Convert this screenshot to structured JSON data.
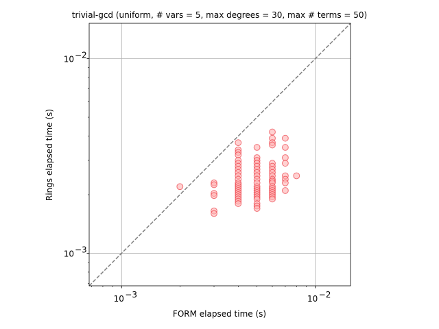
{
  "chart_data": {
    "type": "scatter",
    "title": "trivial-gcd (uniform, # vars = 5, max degrees = 30, max # terms = 50)",
    "xlabel": "FORM elapsed time (s)",
    "ylabel": "Rings elapsed time (s)",
    "xscale": "log",
    "yscale": "log",
    "xlim": [
      0.00068,
      0.0152
    ],
    "ylim": [
      0.00068,
      0.0152
    ],
    "grid": true,
    "reference_line": {
      "style": "dashed",
      "color": "#808080",
      "from": [
        0.00068,
        0.00068
      ],
      "to": [
        0.0152,
        0.0152
      ]
    },
    "marker": {
      "face": "#ffb3b3",
      "edge": "#e8202a"
    },
    "x_ticks": [
      {
        "value": 0.001,
        "base": "10",
        "exp": "−3"
      },
      {
        "value": 0.01,
        "base": "10",
        "exp": "−2"
      }
    ],
    "y_ticks": [
      {
        "value": 0.001,
        "base": "10",
        "exp": "−3"
      },
      {
        "value": 0.01,
        "base": "10",
        "exp": "−2"
      }
    ],
    "x_minor_ticks": [
      0.0007,
      0.0008,
      0.0009,
      0.002,
      0.003,
      0.004,
      0.005,
      0.006,
      0.007,
      0.008,
      0.009
    ],
    "y_minor_ticks": [
      0.0007,
      0.0008,
      0.0009,
      0.002,
      0.003,
      0.004,
      0.005,
      0.006,
      0.007,
      0.008,
      0.009
    ],
    "points": [
      {
        "x": 0.002,
        "y": 0.0022
      },
      {
        "x": 0.003,
        "y": 0.0023
      },
      {
        "x": 0.003,
        "y": 0.00225
      },
      {
        "x": 0.003,
        "y": 0.00203
      },
      {
        "x": 0.003,
        "y": 0.00198
      },
      {
        "x": 0.003,
        "y": 0.00165
      },
      {
        "x": 0.003,
        "y": 0.0016
      },
      {
        "x": 0.004,
        "y": 0.0037
      },
      {
        "x": 0.004,
        "y": 0.0034
      },
      {
        "x": 0.004,
        "y": 0.0033
      },
      {
        "x": 0.004,
        "y": 0.0032
      },
      {
        "x": 0.004,
        "y": 0.003
      },
      {
        "x": 0.004,
        "y": 0.0029
      },
      {
        "x": 0.004,
        "y": 0.0028
      },
      {
        "x": 0.004,
        "y": 0.0027
      },
      {
        "x": 0.004,
        "y": 0.0026
      },
      {
        "x": 0.004,
        "y": 0.0025
      },
      {
        "x": 0.004,
        "y": 0.0024
      },
      {
        "x": 0.004,
        "y": 0.0023
      },
      {
        "x": 0.004,
        "y": 0.00225
      },
      {
        "x": 0.004,
        "y": 0.0022
      },
      {
        "x": 0.004,
        "y": 0.00215
      },
      {
        "x": 0.004,
        "y": 0.0021
      },
      {
        "x": 0.004,
        "y": 0.00205
      },
      {
        "x": 0.004,
        "y": 0.002
      },
      {
        "x": 0.004,
        "y": 0.00195
      },
      {
        "x": 0.004,
        "y": 0.0019
      },
      {
        "x": 0.004,
        "y": 0.00185
      },
      {
        "x": 0.004,
        "y": 0.0018
      },
      {
        "x": 0.005,
        "y": 0.0035
      },
      {
        "x": 0.005,
        "y": 0.0031
      },
      {
        "x": 0.005,
        "y": 0.003
      },
      {
        "x": 0.005,
        "y": 0.0029
      },
      {
        "x": 0.005,
        "y": 0.0028
      },
      {
        "x": 0.005,
        "y": 0.0027
      },
      {
        "x": 0.005,
        "y": 0.0026
      },
      {
        "x": 0.005,
        "y": 0.0025
      },
      {
        "x": 0.005,
        "y": 0.0024
      },
      {
        "x": 0.005,
        "y": 0.0023
      },
      {
        "x": 0.005,
        "y": 0.0022
      },
      {
        "x": 0.005,
        "y": 0.00215
      },
      {
        "x": 0.005,
        "y": 0.0021
      },
      {
        "x": 0.005,
        "y": 0.00205
      },
      {
        "x": 0.005,
        "y": 0.002
      },
      {
        "x": 0.005,
        "y": 0.00195
      },
      {
        "x": 0.005,
        "y": 0.0019
      },
      {
        "x": 0.005,
        "y": 0.0018
      },
      {
        "x": 0.005,
        "y": 0.00175
      },
      {
        "x": 0.005,
        "y": 0.0017
      },
      {
        "x": 0.006,
        "y": 0.0042
      },
      {
        "x": 0.006,
        "y": 0.0039
      },
      {
        "x": 0.006,
        "y": 0.0037
      },
      {
        "x": 0.006,
        "y": 0.0036
      },
      {
        "x": 0.006,
        "y": 0.0029
      },
      {
        "x": 0.006,
        "y": 0.0028
      },
      {
        "x": 0.006,
        "y": 0.0027
      },
      {
        "x": 0.006,
        "y": 0.0026
      },
      {
        "x": 0.006,
        "y": 0.0025
      },
      {
        "x": 0.006,
        "y": 0.0024
      },
      {
        "x": 0.006,
        "y": 0.00235
      },
      {
        "x": 0.006,
        "y": 0.0023
      },
      {
        "x": 0.006,
        "y": 0.0022
      },
      {
        "x": 0.006,
        "y": 0.00215
      },
      {
        "x": 0.006,
        "y": 0.0021
      },
      {
        "x": 0.006,
        "y": 0.00205
      },
      {
        "x": 0.006,
        "y": 0.002
      },
      {
        "x": 0.006,
        "y": 0.00195
      },
      {
        "x": 0.006,
        "y": 0.0019
      },
      {
        "x": 0.007,
        "y": 0.0039
      },
      {
        "x": 0.007,
        "y": 0.0035
      },
      {
        "x": 0.007,
        "y": 0.0031
      },
      {
        "x": 0.007,
        "y": 0.0029
      },
      {
        "x": 0.007,
        "y": 0.0025
      },
      {
        "x": 0.007,
        "y": 0.0024
      },
      {
        "x": 0.007,
        "y": 0.0023
      },
      {
        "x": 0.007,
        "y": 0.0021
      },
      {
        "x": 0.008,
        "y": 0.0025
      }
    ]
  }
}
